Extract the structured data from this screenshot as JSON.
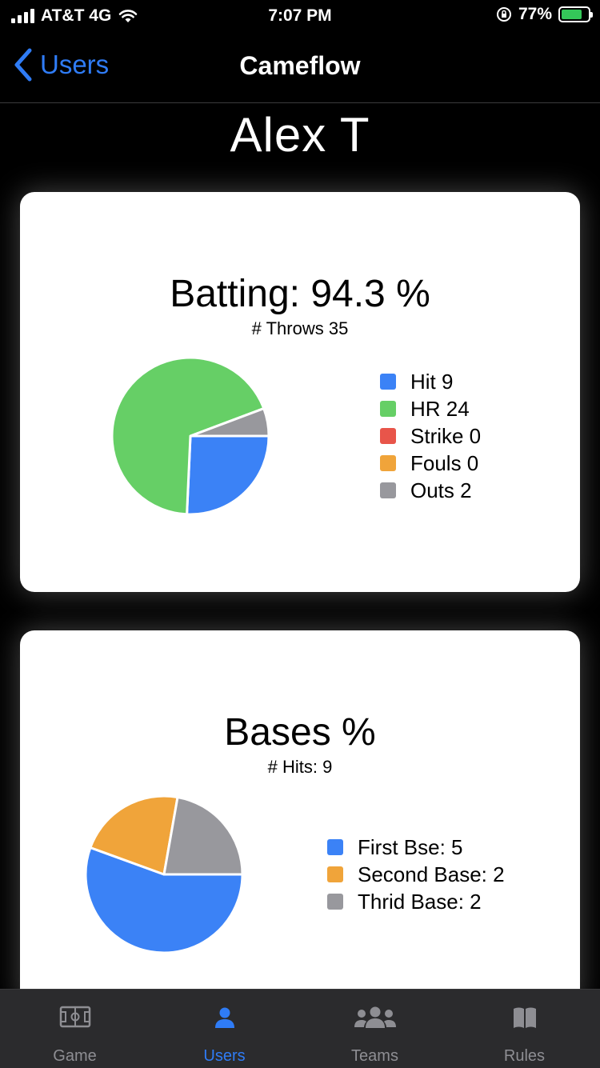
{
  "status_bar": {
    "carrier": "AT&T 4G",
    "time": "7:07 PM",
    "battery": "77%",
    "battery_level": 0.77
  },
  "nav": {
    "back_label": "Users",
    "title": "Cameflow"
  },
  "player_name": "Alex T",
  "cards": {
    "batting": {
      "title": "Batting: 94.3 %",
      "subtitle": "# Throws 35",
      "legend": [
        "Hit 9",
        "HR 24",
        "Strike 0",
        "Fouls 0",
        "Outs 2"
      ]
    },
    "bases": {
      "title": "Bases %",
      "subtitle": "# Hits: 9",
      "legend": [
        "First Bse: 5",
        "Second Base: 2",
        "Thrid Base: 2"
      ]
    }
  },
  "chart_data": [
    {
      "type": "pie",
      "title": "Batting: 94.3 %",
      "subtitle": "# Throws 35",
      "categories": [
        "Hit",
        "HR",
        "Strike",
        "Fouls",
        "Outs"
      ],
      "values": [
        9,
        24,
        0,
        0,
        2
      ],
      "colors": [
        "#3b82f6",
        "#66cf66",
        "#e8554a",
        "#f0a43a",
        "#98989d"
      ],
      "legend_position": "right"
    },
    {
      "type": "pie",
      "title": "Bases %",
      "subtitle": "# Hits: 9",
      "categories": [
        "First Bse",
        "Second Base",
        "Thrid Base"
      ],
      "values": [
        5,
        2,
        2
      ],
      "colors": [
        "#3b82f6",
        "#f0a43a",
        "#98989d"
      ],
      "legend_position": "right"
    }
  ],
  "tabs": [
    {
      "label": "Game",
      "icon": "field-icon",
      "active": false
    },
    {
      "label": "Users",
      "icon": "person-icon",
      "active": true
    },
    {
      "label": "Teams",
      "icon": "group-icon",
      "active": false
    },
    {
      "label": "Rules",
      "icon": "book-icon",
      "active": false
    }
  ],
  "colors": {
    "accent": "#2f7cf6",
    "tab_inactive": "#8e8e93",
    "tab_background": "#2b2b2d"
  }
}
